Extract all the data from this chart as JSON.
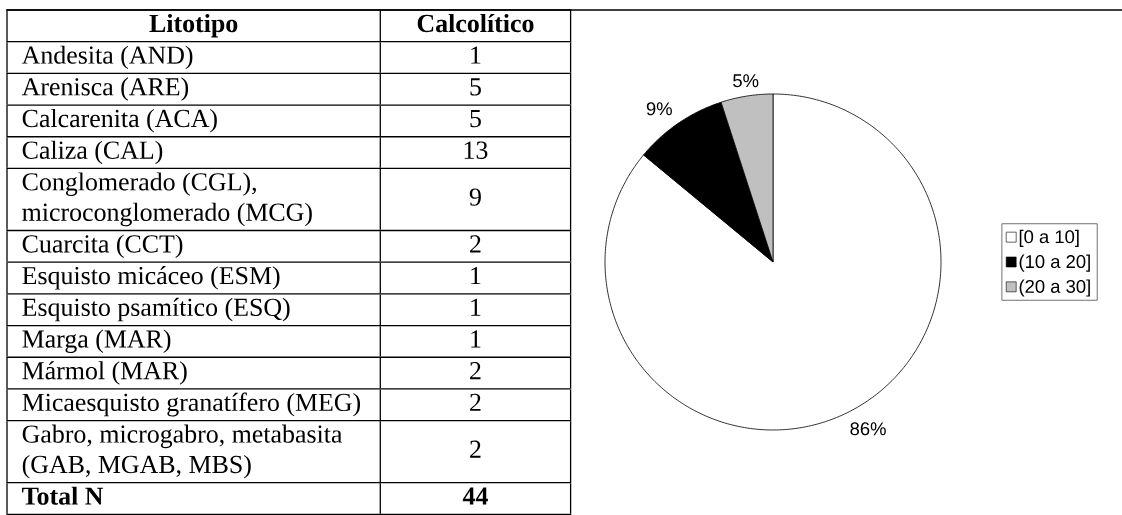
{
  "chart_data": [
    {
      "type": "other",
      "xlabel": "Litotipo",
      "ylabel": "Calcolítico",
      "categories": [
        "Andesita (AND)",
        "Arenisca (ARE)",
        "Calcarenita (ACA)",
        "Caliza (CAL)",
        "Conglomerado (CGL), microconglomerado (MCG)",
        "Cuarcita (CCT)",
        "Esquisto micáceo (ESM)",
        "Esquisto psamítico (ESQ)",
        "Marga (MAR)",
        "Mármol (MAR)",
        "Micaesquisto granatífero (MEG)",
        "Gabro, microgabro, metabasita (GAB, MGAB, MBS)"
      ],
      "values": [
        1,
        5,
        5,
        13,
        9,
        2,
        1,
        1,
        1,
        2,
        2,
        2
      ],
      "data_labels": true,
      "annotations": [
        "Total N",
        "44"
      ]
    },
    {
      "type": "pie",
      "categories": [
        "[0 a 10]",
        "(10 a 20]",
        "(20 a 30]"
      ],
      "values": [
        86,
        9,
        5
      ],
      "colors": [
        "#ffffff",
        "#000000",
        "#c0c0c0"
      ],
      "value_labels": [
        "86%",
        "9%",
        "5%"
      ],
      "legend": "right"
    }
  ]
}
